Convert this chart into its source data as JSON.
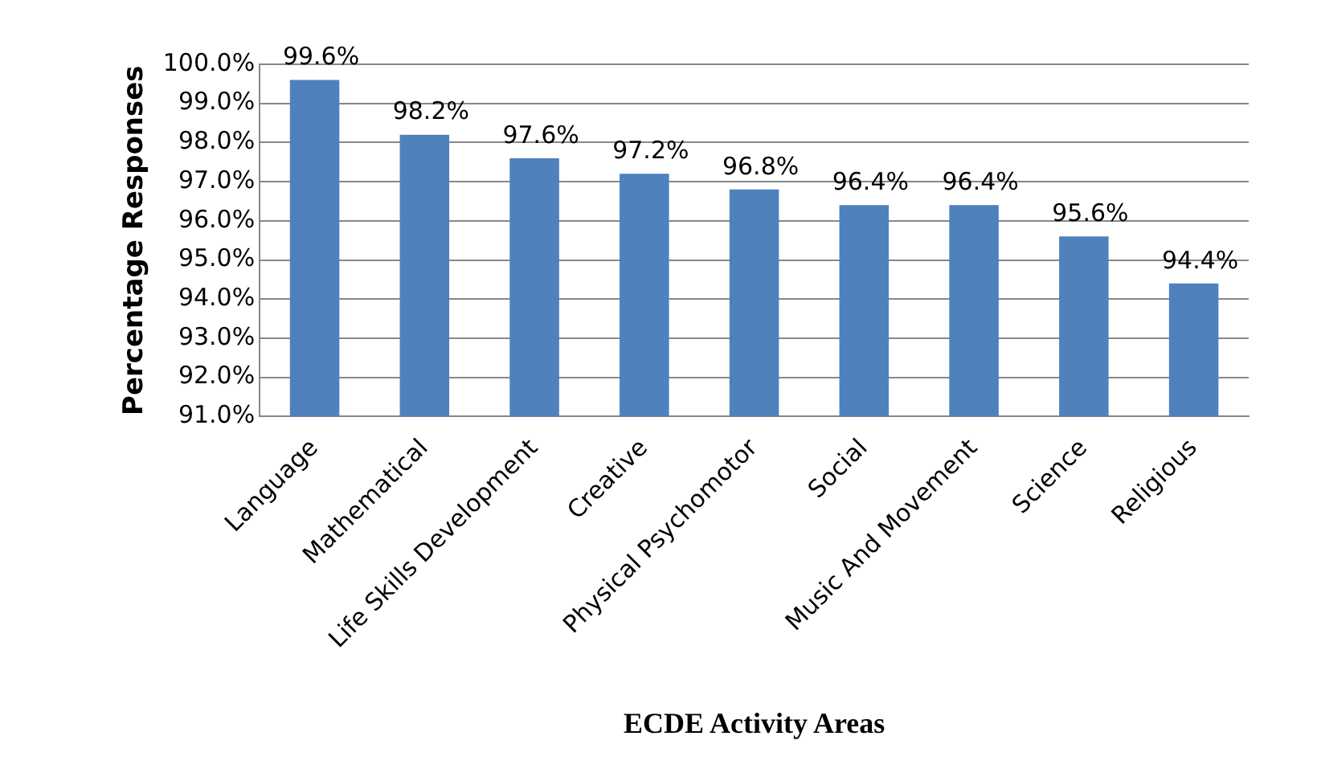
{
  "chart_data": {
    "type": "bar",
    "xlabel": "ECDE Activity Areas",
    "ylabel": "Percentage Responses",
    "categories": [
      "Language",
      "Mathematical",
      "Life Skills Development",
      "Creative",
      "Physical Psychomotor",
      "Social",
      "Music And Movement",
      "Science",
      "Religious"
    ],
    "values": [
      99.6,
      98.2,
      97.6,
      97.2,
      96.8,
      96.4,
      96.4,
      95.6,
      94.4
    ],
    "value_labels": [
      "99.6%",
      "98.2%",
      "97.6%",
      "97.2%",
      "96.8%",
      "96.4%",
      "96.4%",
      "95.6%",
      "94.4%"
    ],
    "color": "#4f81bd",
    "ylim": [
      91,
      100
    ],
    "yticks": [
      {
        "value": 91,
        "label": "91.0%"
      },
      {
        "value": 92,
        "label": "92.0%"
      },
      {
        "value": 93,
        "label": "93.0%"
      },
      {
        "value": 94,
        "label": "94.0%"
      },
      {
        "value": 95,
        "label": "95.0%"
      },
      {
        "value": 96,
        "label": "96.0%"
      },
      {
        "value": 97,
        "label": "97.0%"
      },
      {
        "value": 98,
        "label": "98.0%"
      },
      {
        "value": 99,
        "label": "99.0%"
      },
      {
        "value": 100,
        "label": "100.0%"
      }
    ],
    "grid": "y",
    "legend": false
  }
}
